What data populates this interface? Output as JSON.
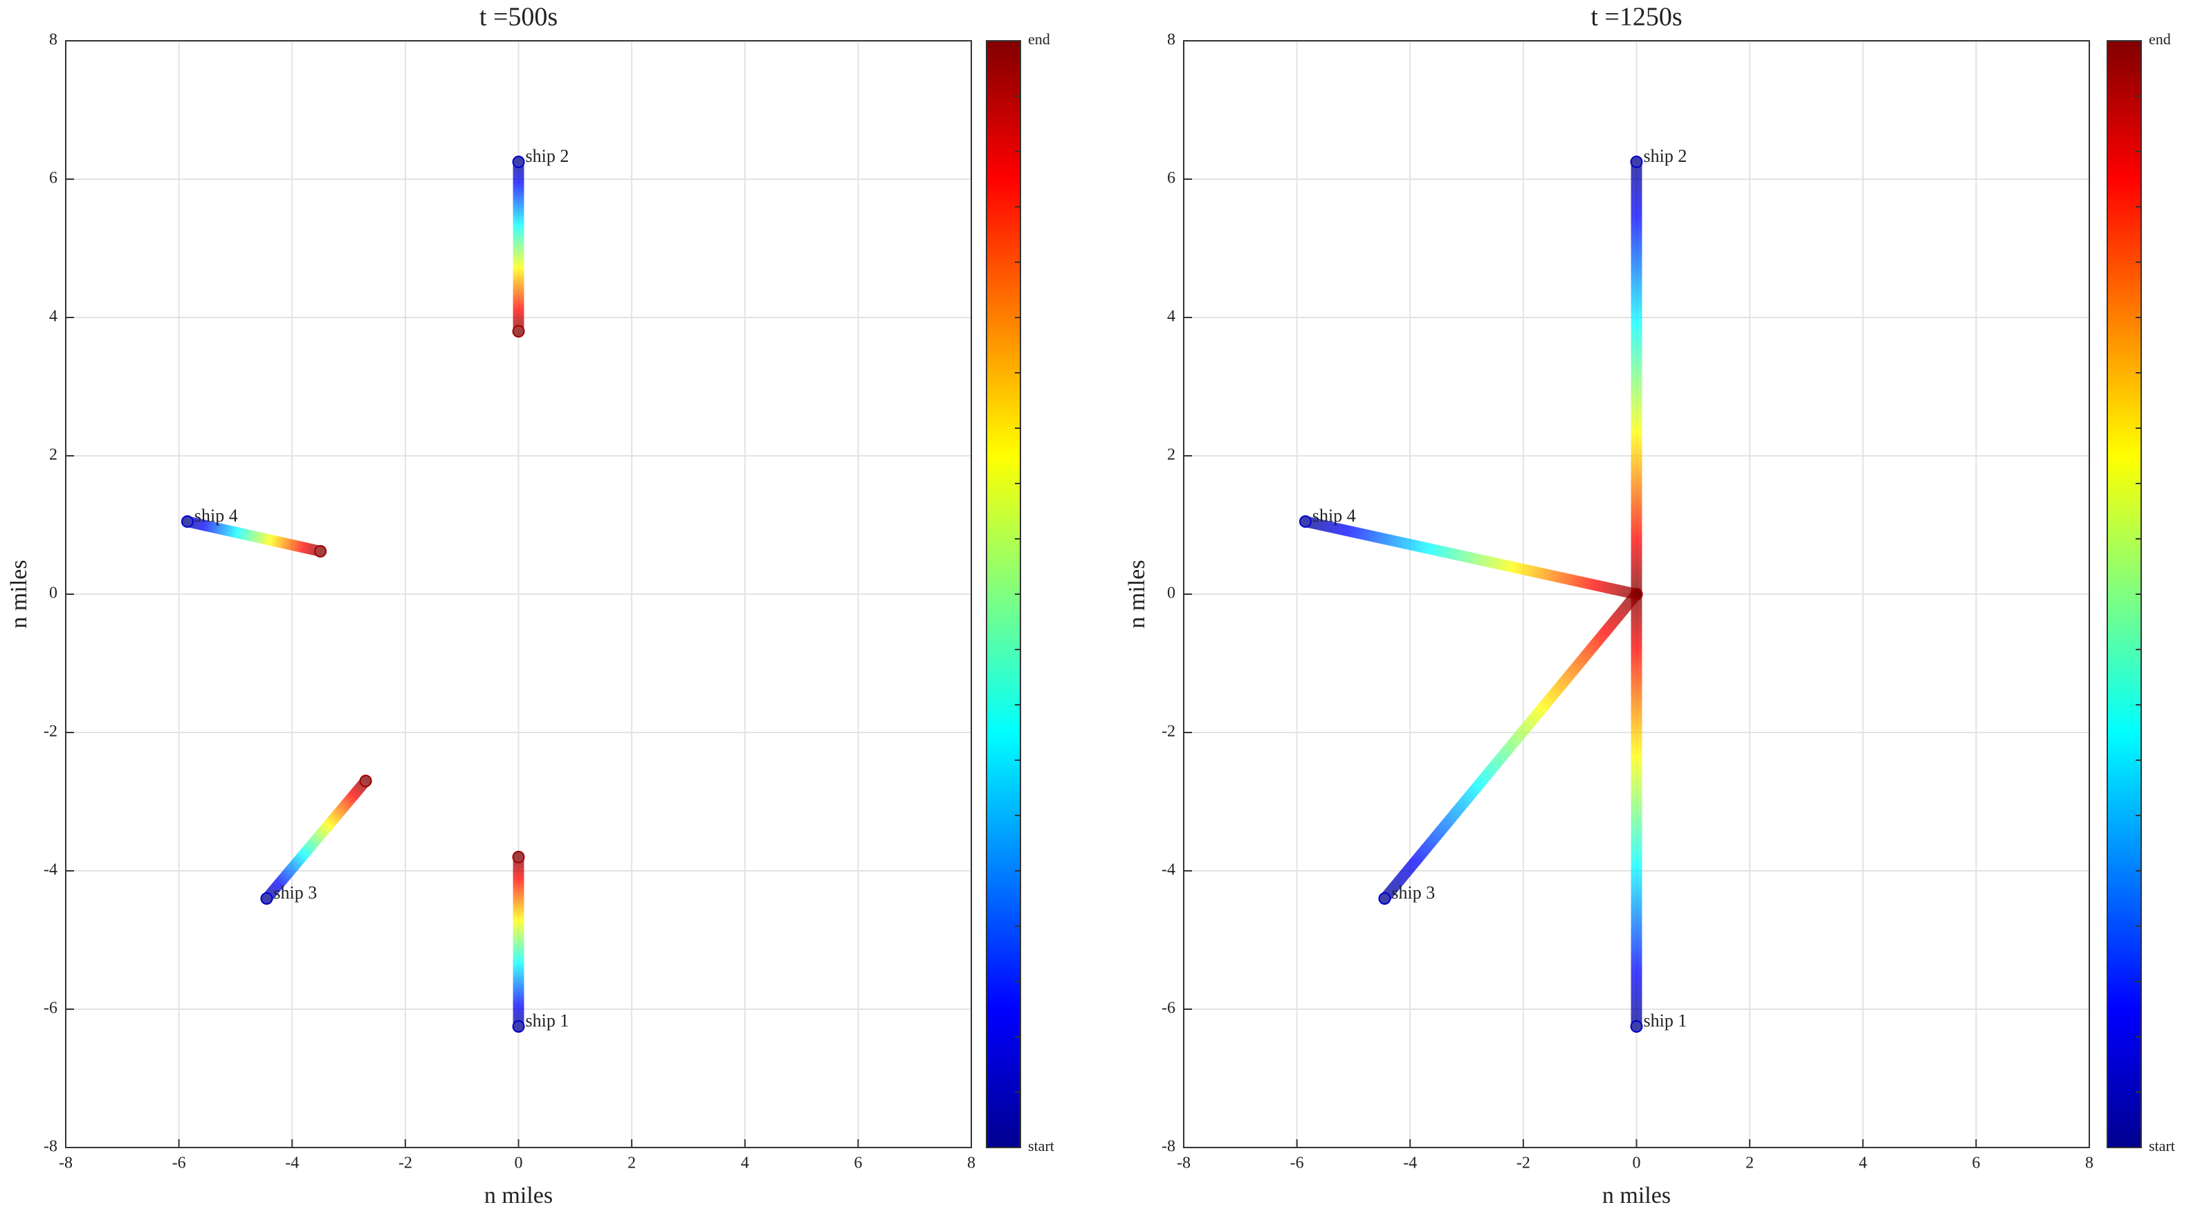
{
  "chart_data": [
    {
      "type": "line",
      "title": "t =500s",
      "xlabel": "n  miles",
      "ylabel": "n  miles",
      "xlim": [
        -8,
        8
      ],
      "ylim": [
        -8,
        8
      ],
      "xticks": [
        -8,
        -6,
        -4,
        -2,
        0,
        2,
        4,
        6,
        8
      ],
      "yticks": [
        -8,
        -6,
        -4,
        -2,
        0,
        2,
        4,
        6,
        8
      ],
      "grid": true,
      "colormap": "jet",
      "colorbar_labels": [
        "start",
        "end"
      ],
      "series": [
        {
          "name": "ship 1",
          "x": [
            0,
            0
          ],
          "values": [
            -6.25,
            -3.8
          ]
        },
        {
          "name": "ship 2",
          "x": [
            0,
            0
          ],
          "values": [
            6.25,
            3.8
          ]
        },
        {
          "name": "ship 3",
          "x": [
            -4.45,
            -2.7
          ],
          "values": [
            -4.4,
            -2.7
          ]
        },
        {
          "name": "ship 4",
          "x": [
            -5.85,
            -3.5
          ],
          "values": [
            1.05,
            0.62
          ]
        }
      ]
    },
    {
      "type": "line",
      "title": "t =1250s",
      "xlabel": "n  miles",
      "ylabel": "n  miles",
      "xlim": [
        -8,
        8
      ],
      "ylim": [
        -8,
        8
      ],
      "xticks": [
        -8,
        -6,
        -4,
        -2,
        0,
        2,
        4,
        6,
        8
      ],
      "yticks": [
        -8,
        -6,
        -4,
        -2,
        0,
        2,
        4,
        6,
        8
      ],
      "grid": true,
      "colormap": "jet",
      "colorbar_labels": [
        "start",
        "end"
      ],
      "series": [
        {
          "name": "ship 1",
          "x": [
            0,
            0
          ],
          "values": [
            -6.25,
            0
          ]
        },
        {
          "name": "ship 2",
          "x": [
            0,
            0
          ],
          "values": [
            6.25,
            0
          ]
        },
        {
          "name": "ship 3",
          "x": [
            -4.45,
            0
          ],
          "values": [
            -4.4,
            0
          ]
        },
        {
          "name": "ship 4",
          "x": [
            -5.85,
            0
          ],
          "values": [
            1.05,
            0
          ]
        }
      ]
    }
  ]
}
